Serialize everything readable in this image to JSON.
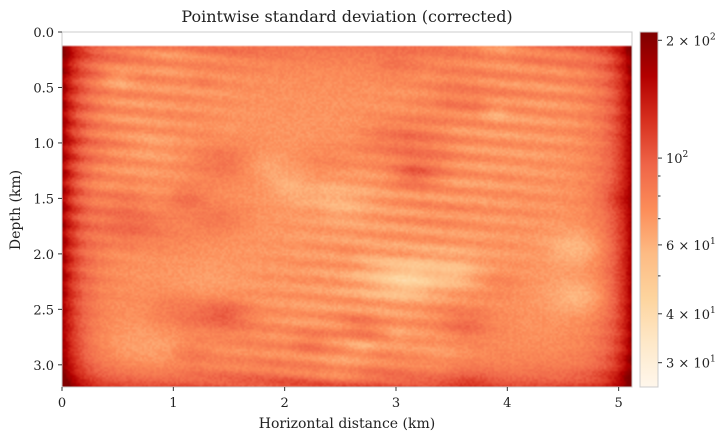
{
  "chart_data": {
    "type": "heatmap",
    "title": "Pointwise standard deviation (corrected)",
    "xlabel": "Horizontal distance (km)",
    "ylabel": "Depth (km)",
    "xlim": [
      0,
      5.12
    ],
    "ylim": [
      3.2,
      0.0
    ],
    "x_ticks": [
      {
        "value": 0,
        "label": "0"
      },
      {
        "value": 1,
        "label": "1"
      },
      {
        "value": 2,
        "label": "2"
      },
      {
        "value": 3,
        "label": "3"
      },
      {
        "value": 4,
        "label": "4"
      },
      {
        "value": 5,
        "label": "5"
      }
    ],
    "y_ticks": [
      {
        "value": 0.0,
        "label": "0.0"
      },
      {
        "value": 0.5,
        "label": "0.5"
      },
      {
        "value": 1.0,
        "label": "1.0"
      },
      {
        "value": 1.5,
        "label": "1.5"
      },
      {
        "value": 2.0,
        "label": "2.0"
      },
      {
        "value": 2.5,
        "label": "2.5"
      },
      {
        "value": 3.0,
        "label": "3.0"
      }
    ],
    "data_top_depth": 0.12,
    "colorbar": {
      "scale": "log",
      "colormap": "OrRd",
      "range": [
        26,
        210
      ],
      "major_ticks": [
        {
          "value": 200,
          "base": "2 × 10",
          "exp": "2"
        },
        {
          "value": 100,
          "base": "10",
          "exp": "2"
        },
        {
          "value": 60,
          "base": "6 × 10",
          "exp": "1"
        },
        {
          "value": 40,
          "base": "4 × 10",
          "exp": "1"
        },
        {
          "value": 30,
          "base": "3 × 10",
          "exp": "1"
        }
      ],
      "minor_ticks": [
        90,
        80,
        70,
        50
      ]
    },
    "field_summary": {
      "typical_interior_value": 70,
      "edge_value": 200,
      "min_value": 35,
      "max_value": 210
    }
  },
  "colors": {
    "cmap": [
      "#fff7ec",
      "#fee8c8",
      "#fdd49e",
      "#fdbb84",
      "#fc8d59",
      "#ef6548",
      "#d7301f",
      "#b30000",
      "#7f0000"
    ],
    "frame": "#cccccc"
  }
}
